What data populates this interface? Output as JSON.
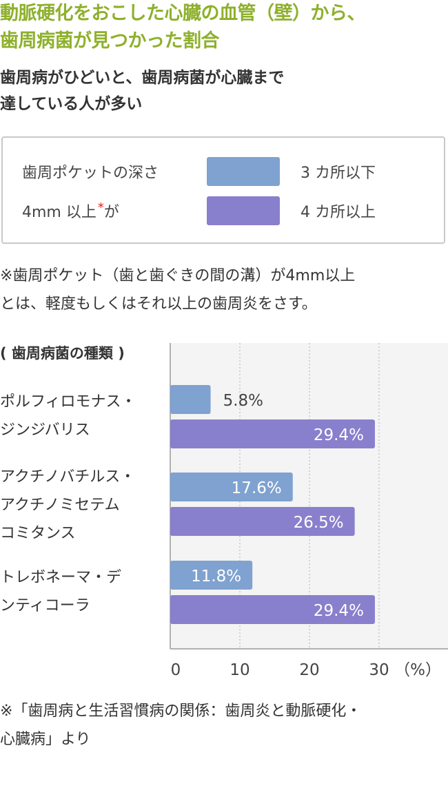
{
  "title_lines": [
    "動脈硬化をおこした心臓の血管（壁）から、",
    "歯周病菌が見つかった割合"
  ],
  "subtitle_lines": [
    "歯周病がひどいと、歯周病菌が心臓まで",
    "達している人が多い"
  ],
  "legend": {
    "label_line1": "歯周ポケットの深さ",
    "label_line2": "4mm 以上",
    "label_star": "*",
    "label_suffix": "が",
    "items": [
      {
        "value": "3 カ所以下",
        "color": "#7fa2d0"
      },
      {
        "value": "4 カ所以上",
        "color": "#8880cc"
      }
    ]
  },
  "note_lines": [
    "※歯周ポケット（歯と歯ぐきの間の溝）が4mm以上",
    "とは、軽度もしくはそれ以上の歯周炎をさす。"
  ],
  "source_lines": [
    "※「歯周病と生活習慣病の関係：歯周炎と動脈硬化・",
    "心臓病」より"
  ],
  "chart_data": {
    "type": "bar",
    "orientation": "horizontal",
    "category_header": "( 歯周病菌の種類 )",
    "categories": [
      [
        "ポルフィロモナス・",
        "ジンジバリス"
      ],
      [
        "アクチノバチルス・",
        "アクチノミセテム",
        "コミタンス"
      ],
      [
        "トレボネーマ・デ",
        "ンティコーラ"
      ]
    ],
    "series": [
      {
        "name": "3 カ所以下",
        "values": [
          5.8,
          17.6,
          11.8
        ],
        "labels": [
          "5.8%",
          "17.6%",
          "11.8%"
        ],
        "color": "#7fa2d0"
      },
      {
        "name": "4 カ所以上",
        "values": [
          29.4,
          26.5,
          29.4
        ],
        "labels": [
          "29.4%",
          "26.5%",
          "29.4%"
        ],
        "color": "#8880cc"
      }
    ],
    "x_ticks": [
      0,
      10,
      20,
      30
    ],
    "x_tick_labels": [
      "0",
      "10",
      "20",
      "30"
    ],
    "x_unit": "（%）",
    "xlim": [
      0,
      40
    ],
    "grid": true,
    "gridline_style": "dotted",
    "plot_background": "#f4f4f4"
  }
}
